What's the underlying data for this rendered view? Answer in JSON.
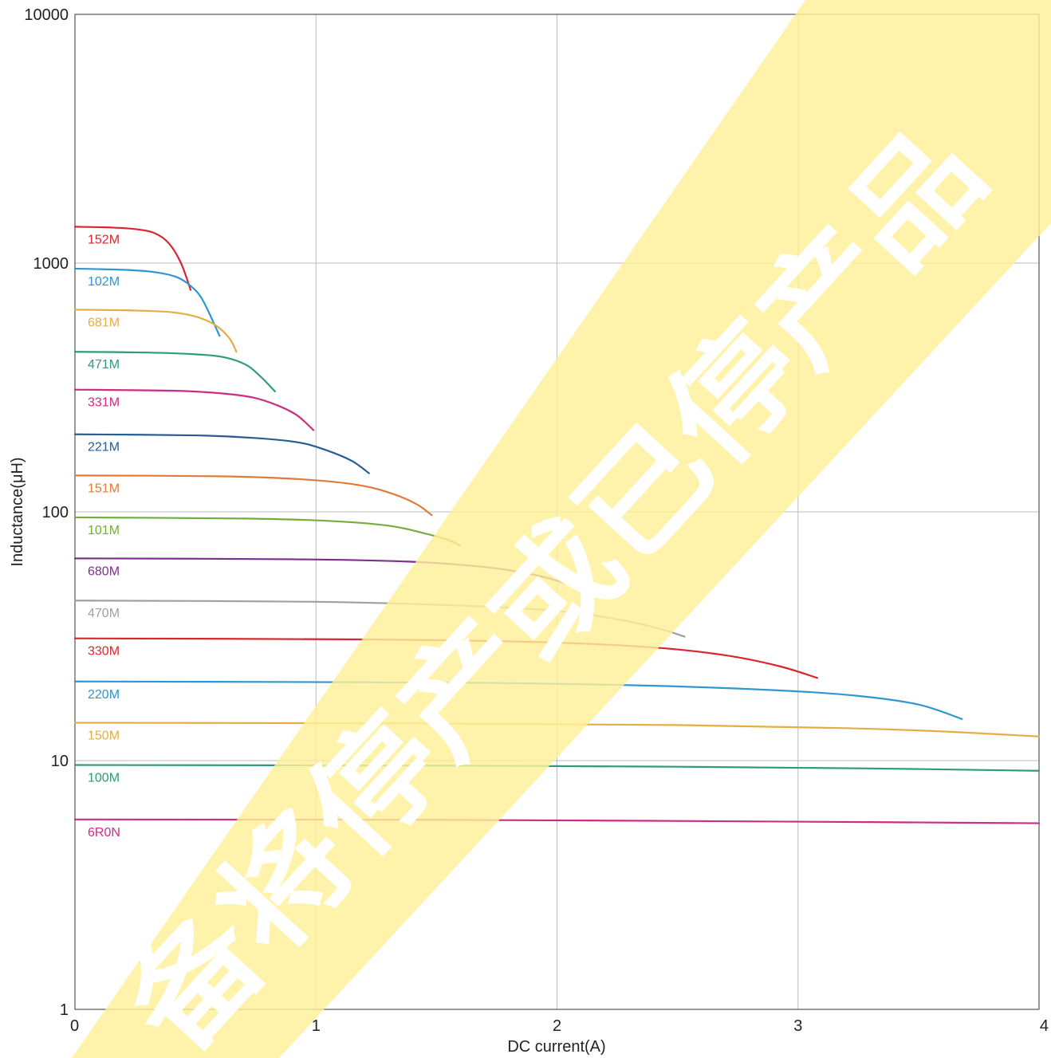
{
  "chart_data": {
    "type": "line",
    "xlabel": "DC current(A)",
    "ylabel": "Inductance(μH)",
    "xlim": [
      0,
      4
    ],
    "ylim": [
      1,
      10000
    ],
    "yscale": "log",
    "grid": true,
    "xticks": [
      "0",
      "1",
      "2",
      "3",
      "4"
    ],
    "yticks": [
      "1",
      "10",
      "100",
      "1000",
      "10000"
    ],
    "watermark": "备将停产或已停产品",
    "watermark_color": "#fff09a",
    "series": [
      {
        "name": "152M",
        "color": "#d8262e",
        "x": [
          0,
          0.15,
          0.25,
          0.33,
          0.39,
          0.44,
          0.48
        ],
        "y": [
          1400,
          1390,
          1370,
          1320,
          1200,
          1000,
          780
        ]
      },
      {
        "name": "102M",
        "color": "#2f97cf",
        "x": [
          0,
          0.2,
          0.33,
          0.42,
          0.48,
          0.53,
          0.6
        ],
        "y": [
          950,
          940,
          920,
          880,
          810,
          710,
          510
        ]
      },
      {
        "name": "681M",
        "color": "#e6ad44",
        "x": [
          0,
          0.25,
          0.4,
          0.5,
          0.58,
          0.64,
          0.67
        ],
        "y": [
          650,
          645,
          635,
          610,
          565,
          500,
          440
        ]
      },
      {
        "name": "471M",
        "color": "#2e9a7e",
        "x": [
          0,
          0.3,
          0.5,
          0.62,
          0.71,
          0.77,
          0.83
        ],
        "y": [
          440,
          437,
          430,
          418,
          390,
          350,
          305
        ]
      },
      {
        "name": "331M",
        "color": "#cc2d80",
        "x": [
          0,
          0.4,
          0.6,
          0.74,
          0.84,
          0.92,
          0.99
        ],
        "y": [
          310,
          307,
          300,
          288,
          268,
          245,
          213
        ]
      },
      {
        "name": "221M",
        "color": "#265d95",
        "x": [
          0,
          0.5,
          0.75,
          0.93,
          1.05,
          1.15,
          1.22
        ],
        "y": [
          205,
          203,
          198,
          190,
          176,
          160,
          143
        ]
      },
      {
        "name": "151M",
        "color": "#e07b39",
        "x": [
          0,
          0.6,
          0.95,
          1.18,
          1.32,
          1.42,
          1.48
        ],
        "y": [
          140,
          139,
          135,
          128,
          118,
          107,
          97
        ]
      },
      {
        "name": "101M",
        "color": "#77ad3e",
        "x": [
          0,
          0.7,
          1.05,
          1.3,
          1.45,
          1.55,
          1.6
        ],
        "y": [
          95,
          94,
          92,
          88,
          82,
          77,
          73
        ]
      },
      {
        "name": "680M",
        "color": "#7e2f8e",
        "x": [
          0,
          0.9,
          1.4,
          1.7,
          1.9,
          2.05,
          2.15
        ],
        "y": [
          65,
          64.5,
          63,
          60,
          56,
          51,
          46
        ]
      },
      {
        "name": "470M",
        "color": "#a0a0a0",
        "x": [
          0,
          1,
          1.6,
          2,
          2.25,
          2.42,
          2.53
        ],
        "y": [
          44,
          43.5,
          42,
          40,
          37,
          34,
          31.5
        ]
      },
      {
        "name": "330M",
        "color": "#d8262e",
        "x": [
          0,
          1.2,
          1.9,
          2.4,
          2.7,
          2.92,
          3.08
        ],
        "y": [
          31,
          30.7,
          30,
          28.5,
          26.5,
          24,
          21.5
        ]
      },
      {
        "name": "220M",
        "color": "#2f97cf",
        "x": [
          0,
          1.5,
          2.3,
          2.9,
          3.25,
          3.5,
          3.68
        ],
        "y": [
          20.8,
          20.6,
          20.1,
          19.2,
          18.2,
          16.8,
          14.7
        ]
      },
      {
        "name": "150M",
        "color": "#e6ad44",
        "x": [
          0,
          1.5,
          2.5,
          3.2,
          3.6,
          4
        ],
        "y": [
          14.2,
          14.1,
          13.9,
          13.5,
          13.1,
          12.5
        ]
      },
      {
        "name": "100M",
        "color": "#2e9a7e",
        "x": [
          0,
          1.5,
          2.5,
          3.3,
          4
        ],
        "y": [
          9.6,
          9.55,
          9.45,
          9.3,
          9.1
        ]
      },
      {
        "name": "6R0N",
        "color": "#cc2d80",
        "x": [
          0,
          1.5,
          2.5,
          3.3,
          4
        ],
        "y": [
          5.8,
          5.78,
          5.72,
          5.66,
          5.6
        ]
      }
    ]
  }
}
